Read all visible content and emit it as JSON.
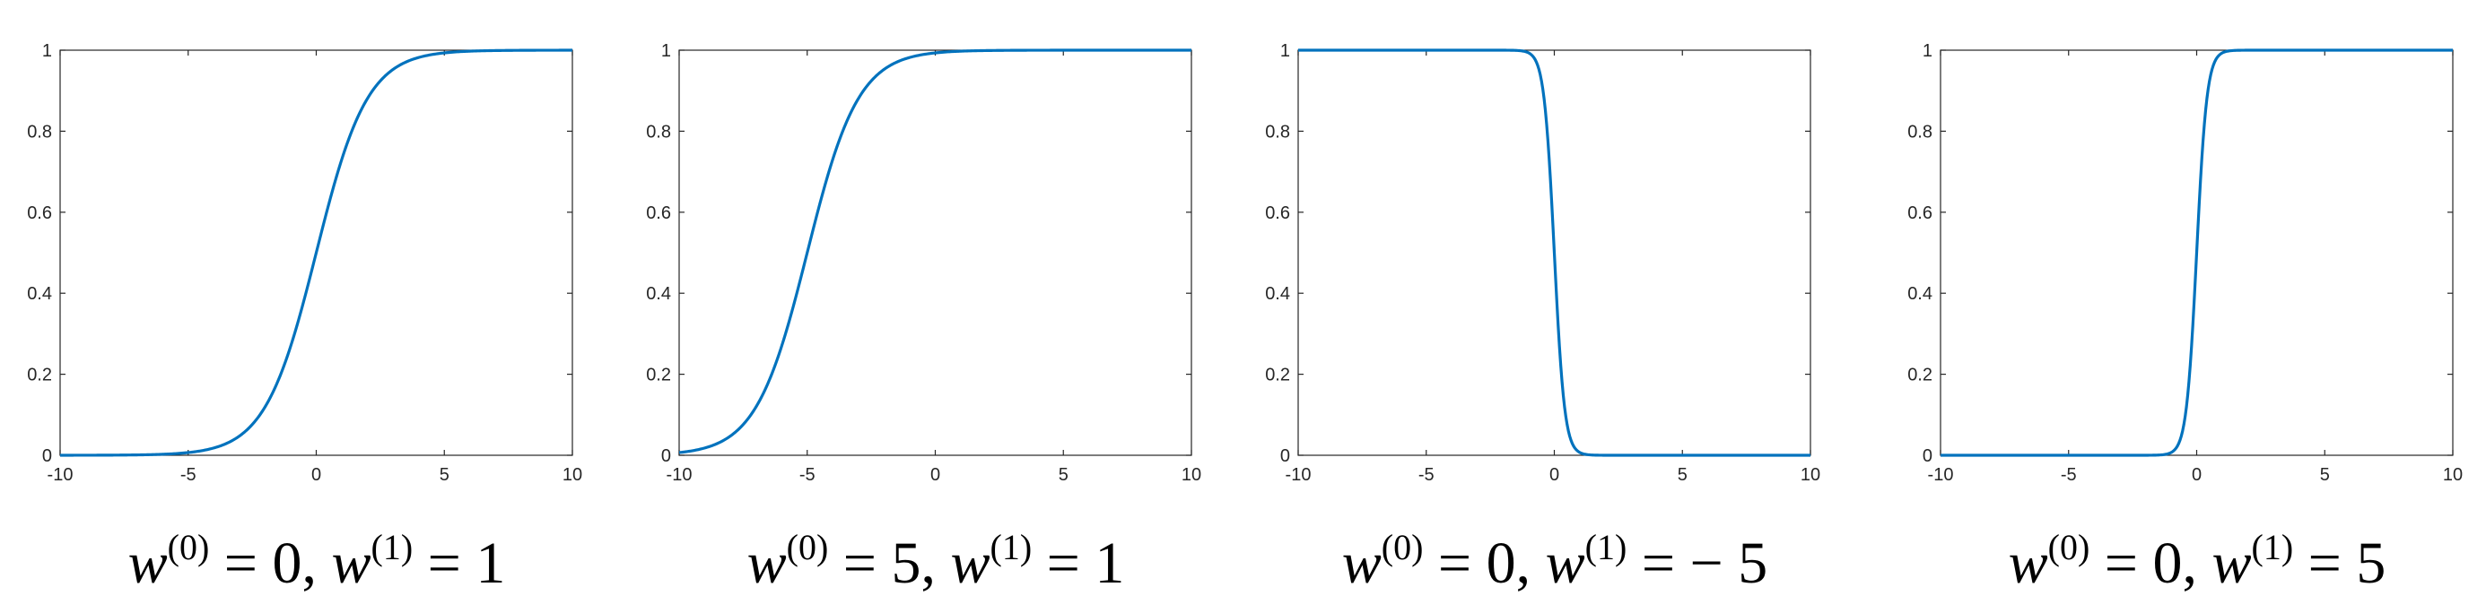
{
  "chart_data": [
    {
      "type": "line",
      "function": "logistic",
      "w0": 0,
      "w1": 1,
      "caption": {
        "w0_value": "0",
        "w1_value": "1"
      },
      "xlim": [
        -10,
        10
      ],
      "ylim": [
        0,
        1
      ],
      "xticks": [
        "-10",
        "-5",
        "0",
        "5",
        "10"
      ],
      "yticks": [
        "0",
        "0.2",
        "0.4",
        "0.6",
        "0.8",
        "1"
      ],
      "x": [
        -10,
        -8,
        -6,
        -5,
        -4,
        -3,
        -2,
        -1,
        0,
        1,
        2,
        3,
        4,
        5,
        6,
        8,
        10
      ],
      "y": [
        0.0,
        0.0003,
        0.0025,
        0.0067,
        0.018,
        0.047,
        0.119,
        0.269,
        0.5,
        0.731,
        0.881,
        0.953,
        0.982,
        0.993,
        0.998,
        0.9997,
        1.0
      ],
      "grid": false
    },
    {
      "type": "line",
      "function": "logistic",
      "w0": 5,
      "w1": 1,
      "caption": {
        "w0_value": "5",
        "w1_value": "1"
      },
      "xlim": [
        -10,
        10
      ],
      "ylim": [
        0,
        1
      ],
      "xticks": [
        "-10",
        "-5",
        "0",
        "5",
        "10"
      ],
      "yticks": [
        "0",
        "0.2",
        "0.4",
        "0.6",
        "0.8",
        "1"
      ],
      "x": [
        -10,
        -9,
        -8,
        -7,
        -6,
        -5,
        -4,
        -3,
        -2,
        -1,
        0,
        1,
        2,
        4,
        6,
        8,
        10
      ],
      "y": [
        0.007,
        0.018,
        0.047,
        0.119,
        0.269,
        0.5,
        0.731,
        0.881,
        0.953,
        0.982,
        0.993,
        0.998,
        0.999,
        1.0,
        1.0,
        1.0,
        1.0
      ],
      "grid": false
    },
    {
      "type": "line",
      "function": "logistic",
      "w0": 0,
      "w1": -5,
      "caption": {
        "w0_value": "0",
        "w1_value": "− 5"
      },
      "xlim": [
        -10,
        10
      ],
      "ylim": [
        0,
        1
      ],
      "xticks": [
        "-10",
        "-5",
        "0",
        "5",
        "10"
      ],
      "yticks": [
        "0",
        "0.2",
        "0.4",
        "0.6",
        "0.8",
        "1"
      ],
      "x": [
        -10,
        -5,
        -2,
        -1.5,
        -1,
        -0.6,
        -0.4,
        -0.2,
        0,
        0.2,
        0.4,
        0.6,
        1,
        1.5,
        2,
        5,
        10
      ],
      "y": [
        1.0,
        1.0,
        1.0,
        0.9994,
        0.993,
        0.953,
        0.881,
        0.731,
        0.5,
        0.269,
        0.119,
        0.047,
        0.007,
        0.0006,
        0.0,
        0.0,
        0.0
      ],
      "grid": false
    },
    {
      "type": "line",
      "function": "logistic",
      "w0": 0,
      "w1": 5,
      "caption": {
        "w0_value": "0",
        "w1_value": "5"
      },
      "xlim": [
        -10,
        10
      ],
      "ylim": [
        0,
        1
      ],
      "xticks": [
        "-10",
        "-5",
        "0",
        "5",
        "10"
      ],
      "yticks": [
        "0",
        "0.2",
        "0.4",
        "0.6",
        "0.8",
        "1"
      ],
      "x": [
        -10,
        -5,
        -2,
        -1.5,
        -1,
        -0.6,
        -0.4,
        -0.2,
        0,
        0.2,
        0.4,
        0.6,
        1,
        1.5,
        2,
        5,
        10
      ],
      "y": [
        0.0,
        0.0,
        0.0,
        0.0006,
        0.007,
        0.047,
        0.119,
        0.269,
        0.5,
        0.731,
        0.881,
        0.953,
        0.993,
        0.9994,
        1.0,
        1.0,
        1.0
      ],
      "grid": false
    }
  ],
  "caption_parts": {
    "var": "w",
    "sup0": "(0)",
    "sup1": "(1)",
    "equals": " = ",
    "comma": ", "
  },
  "colors": {
    "line": "#0072BD",
    "axes": "#262626",
    "background": "#ffffff"
  }
}
